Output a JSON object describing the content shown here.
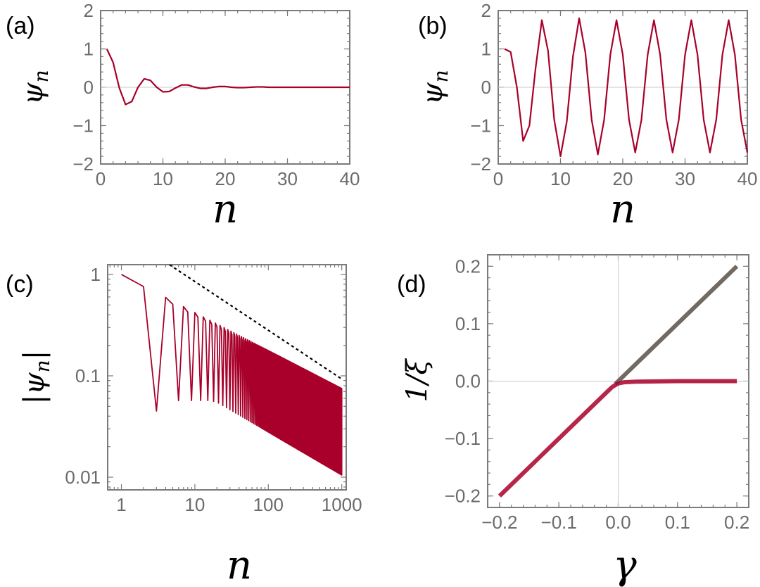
{
  "colors": {
    "curve": "#a8002a",
    "gray_line": "#716a64",
    "frame": "#7a7a7a",
    "tick_text": "#6b6b6b",
    "dashed": "#000000"
  },
  "chart_data": [
    {
      "id": "a",
      "type": "line",
      "panel_label": "(a)",
      "xlabel": "n",
      "ylabel": "ψn",
      "xlim": [
        0,
        40
      ],
      "ylim": [
        -2,
        2
      ],
      "xticks": [
        0,
        10,
        20,
        30,
        40
      ],
      "yticks": [
        -2,
        -1,
        0,
        1,
        2
      ],
      "xtick_labels": [
        "0",
        "10",
        "20",
        "30",
        "40"
      ],
      "ytick_labels": [
        "−2",
        "−1",
        "0",
        "1",
        "2"
      ],
      "series": [
        {
          "x": [
            1,
            2,
            3,
            4,
            5,
            6,
            7,
            8,
            9,
            10,
            11,
            12,
            13,
            14,
            15,
            16,
            17,
            18,
            19,
            20,
            21,
            22,
            23,
            24,
            25,
            26,
            27,
            28,
            29,
            30,
            31,
            32,
            33,
            34,
            35,
            36,
            37,
            38,
            39,
            40
          ],
          "values": [
            1.0,
            0.65,
            -0.02,
            -0.45,
            -0.37,
            0.0,
            0.22,
            0.18,
            0.0,
            -0.12,
            -0.11,
            -0.02,
            0.06,
            0.06,
            0.01,
            -0.03,
            -0.03,
            0.0,
            0.02,
            0.02,
            0.0,
            -0.01,
            -0.01,
            0.0,
            0.01,
            0.01,
            0.0,
            0.0,
            0.0,
            0.0,
            0.0,
            0.0,
            0.0,
            0.0,
            0.0,
            0.0,
            0.0,
            0.0,
            0.0,
            0.0
          ]
        }
      ]
    },
    {
      "id": "b",
      "type": "line",
      "panel_label": "(b)",
      "xlabel": "n",
      "ylabel": "ψn",
      "xlim": [
        0,
        40
      ],
      "ylim": [
        -2,
        2
      ],
      "xticks": [
        0,
        10,
        20,
        30,
        40
      ],
      "yticks": [
        -2,
        -1,
        0,
        1,
        2
      ],
      "xtick_labels": [
        "0",
        "10",
        "20",
        "30",
        "40"
      ],
      "ytick_labels": [
        "−2",
        "−1",
        "0",
        "1",
        "2"
      ],
      "series": [
        {
          "x": [
            1,
            2,
            3,
            4,
            5,
            6,
            7,
            8,
            9,
            10,
            11,
            12,
            13,
            14,
            15,
            16,
            17,
            18,
            19,
            20,
            21,
            22,
            23,
            24,
            25,
            26,
            27,
            28,
            29,
            30,
            31,
            32,
            33,
            34,
            35,
            36,
            37,
            38,
            39,
            40
          ],
          "values": [
            1.0,
            0.92,
            0.0,
            -1.4,
            -1.0,
            0.5,
            1.75,
            0.95,
            -0.85,
            -1.8,
            -0.9,
            0.8,
            1.8,
            0.9,
            -0.85,
            -1.75,
            -0.85,
            0.85,
            1.75,
            0.85,
            -0.85,
            -1.7,
            -0.85,
            0.85,
            1.75,
            0.85,
            -0.85,
            -1.7,
            -0.85,
            0.85,
            1.75,
            0.85,
            -0.85,
            -1.7,
            -0.85,
            0.85,
            1.75,
            0.85,
            -0.85,
            -1.7
          ]
        }
      ]
    },
    {
      "id": "c",
      "type": "line",
      "panel_label": "(c)",
      "xlabel": "n",
      "ylabel": "|ψn|",
      "xscale": "log",
      "yscale": "log",
      "xlim": [
        0.65,
        1150
      ],
      "ylim": [
        0.0075,
        1.25
      ],
      "xticks": [
        1,
        10,
        100,
        1000
      ],
      "yticks": [
        0.01,
        0.1,
        1
      ],
      "xtick_labels": [
        "1",
        "10",
        "100",
        "1000"
      ],
      "ytick_labels": [
        "0.01",
        "0.1",
        "1"
      ],
      "envelope": {
        "upper_top_at_1": 1.0,
        "upper_decay": 0.375,
        "lower_at_20": 0.055,
        "lower_at_1000": 0.0105
      },
      "dashed_line": {
        "x": [
          4.5,
          1000
        ],
        "values": [
          1.25,
          0.093
        ]
      }
    },
    {
      "id": "d",
      "type": "line",
      "panel_label": "(d)",
      "xlabel": "γ",
      "ylabel": "1/ξ",
      "xlim": [
        -0.22,
        0.22
      ],
      "ylim": [
        -0.22,
        0.22
      ],
      "xticks": [
        -0.2,
        -0.1,
        0.0,
        0.1,
        0.2
      ],
      "yticks": [
        -0.2,
        -0.1,
        0.0,
        0.1,
        0.2
      ],
      "xtick_labels": [
        "−0.2",
        "−0.1",
        "0.0",
        "0.1",
        "0.2"
      ],
      "ytick_labels": [
        "−0.2",
        "−0.1",
        "0.0",
        "0.1",
        "0.2"
      ],
      "series": [
        {
          "x": [
            -0.005,
            0.2
          ],
          "values": [
            -0.005,
            0.2
          ],
          "color": "#716a64"
        },
        {
          "x": [
            -0.2,
            -0.05,
            -0.02,
            -0.01,
            0.0,
            0.01,
            0.03,
            0.1,
            0.2
          ],
          "values": [
            -0.2,
            -0.05,
            -0.02,
            -0.01,
            -0.004,
            -0.002,
            -0.001,
            0.0,
            0.0
          ],
          "color": "#a8002a"
        }
      ]
    }
  ]
}
